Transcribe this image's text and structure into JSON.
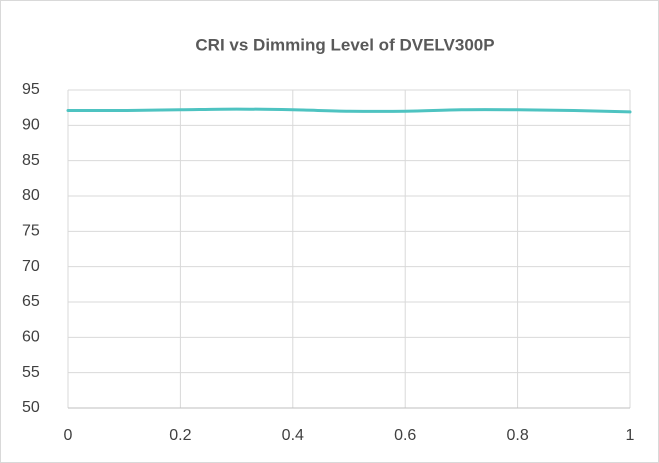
{
  "chart_data": {
    "type": "line",
    "title": "CRI vs Dimming Level of DVELV300P",
    "x": [
      0,
      0.1,
      0.2,
      0.3,
      0.4,
      0.5,
      0.6,
      0.7,
      0.8,
      0.9,
      1
    ],
    "series": [
      {
        "name": "CRI",
        "color": "#4ec3c1",
        "values": [
          92.1,
          92.1,
          92.2,
          92.3,
          92.2,
          92.0,
          92.0,
          92.2,
          92.2,
          92.1,
          91.9
        ]
      }
    ],
    "xlim": [
      0,
      1
    ],
    "xticks": [
      0,
      0.2,
      0.4,
      0.6,
      0.8,
      1
    ],
    "ylim": [
      50,
      95
    ],
    "yticks": [
      50,
      55,
      60,
      65,
      70,
      75,
      80,
      85,
      90,
      95
    ],
    "grid": true,
    "legend": false
  }
}
